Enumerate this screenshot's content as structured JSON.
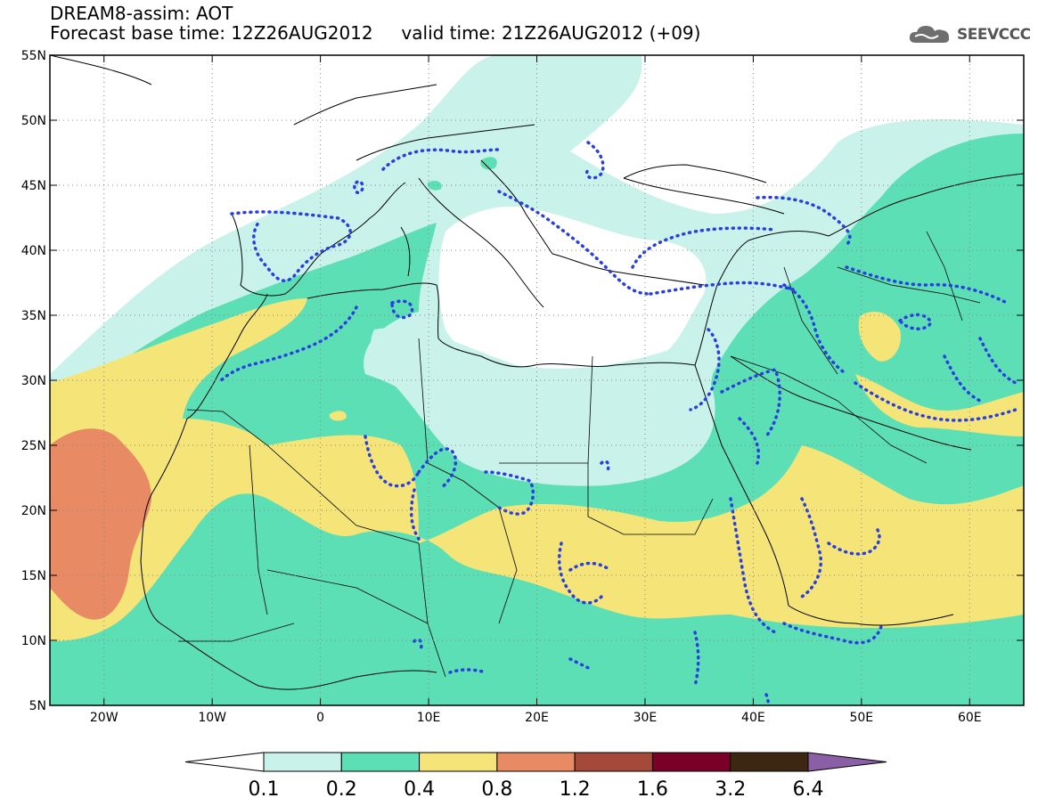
{
  "header": {
    "title": "DREAM8-assim: AOT",
    "base_time_label": "Forecast base time: 12Z26AUG2012",
    "valid_time_label": "valid time: 21Z26AUG2012 (+09)"
  },
  "logo": {
    "text": "SEEVCCC",
    "icon": "cloud-icon"
  },
  "map": {
    "lon_range": [
      -25,
      65
    ],
    "lat_range": [
      5,
      55
    ],
    "lat_ticks": [
      {
        "value": 55,
        "label": "55N"
      },
      {
        "value": 50,
        "label": "50N"
      },
      {
        "value": 45,
        "label": "45N"
      },
      {
        "value": 40,
        "label": "40N"
      },
      {
        "value": 35,
        "label": "35N"
      },
      {
        "value": 30,
        "label": "30N"
      },
      {
        "value": 25,
        "label": "25N"
      },
      {
        "value": 20,
        "label": "20N"
      },
      {
        "value": 15,
        "label": "15N"
      },
      {
        "value": 10,
        "label": "10N"
      },
      {
        "value": 5,
        "label": "5N"
      }
    ],
    "lon_ticks": [
      {
        "value": -20,
        "label": "20W"
      },
      {
        "value": -10,
        "label": "10W"
      },
      {
        "value": 0,
        "label": "0"
      },
      {
        "value": 10,
        "label": "10E"
      },
      {
        "value": 20,
        "label": "20E"
      },
      {
        "value": 30,
        "label": "30E"
      },
      {
        "value": 40,
        "label": "40E"
      },
      {
        "value": 50,
        "label": "50E"
      },
      {
        "value": 60,
        "label": "60E"
      }
    ],
    "grid": "dotted"
  },
  "colorbar": {
    "labels": [
      "0.1",
      "0.2",
      "0.4",
      "0.8",
      "1.2",
      "1.6",
      "3.2",
      "6.4"
    ],
    "colors": [
      "#ffffff",
      "#c9f2ea",
      "#5ddfb5",
      "#f5e478",
      "#e88a64",
      "#a54a3a",
      "#7a0028",
      "#3c2712",
      "#8b5fa6"
    ]
  }
}
